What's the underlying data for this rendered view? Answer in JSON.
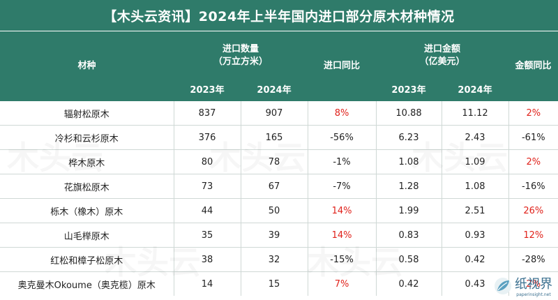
{
  "title": "【木头云资讯】2024年上半年国内进口部分原木材种情况",
  "headers": {
    "species": "材种",
    "volume": "进口数量",
    "volume_unit": "（万立方米）",
    "volume_yoy": "进口同比",
    "amount": "进口金额",
    "amount_unit": "（亿美元）",
    "amount_yoy": "金额同比",
    "y2023": "2023年",
    "y2024": "2024年"
  },
  "rows": [
    {
      "species": "辐射松原木",
      "vol2023": "837",
      "vol2024": "907",
      "vol_yoy": "8%",
      "amt2023": "10.88",
      "amt2024": "11.12",
      "amt_yoy": "2%"
    },
    {
      "species": "冷杉和云杉原木",
      "vol2023": "376",
      "vol2024": "165",
      "vol_yoy": "-56%",
      "amt2023": "6.23",
      "amt2024": "2.43",
      "amt_yoy": "-61%"
    },
    {
      "species": "桦木原木",
      "vol2023": "80",
      "vol2024": "78",
      "vol_yoy": "-1%",
      "amt2023": "1.08",
      "amt2024": "1.09",
      "amt_yoy": "2%"
    },
    {
      "species": "花旗松原木",
      "vol2023": "73",
      "vol2024": "67",
      "vol_yoy": "-7%",
      "amt2023": "1.28",
      "amt2024": "1.08",
      "amt_yoy": "-16%"
    },
    {
      "species": "栎木（橡木）原木",
      "vol2023": "44",
      "vol2024": "50",
      "vol_yoy": "14%",
      "amt2023": "1.99",
      "amt2024": "2.51",
      "amt_yoy": "26%"
    },
    {
      "species": "山毛榉原木",
      "vol2023": "35",
      "vol2024": "39",
      "vol_yoy": "14%",
      "amt2023": "0.83",
      "amt2024": "0.93",
      "amt_yoy": "12%"
    },
    {
      "species": "红松和樟子松原木",
      "vol2023": "38",
      "vol2024": "32",
      "vol_yoy": "-15%",
      "amt2023": "0.58",
      "amt2024": "0.42",
      "amt_yoy": "-28%"
    },
    {
      "species": "奥克曼木Okoume（奥克榄）原木",
      "vol2023": "14",
      "vol2024": "15",
      "vol_yoy": "7%",
      "amt2023": "0.42",
      "amt2024": "0.43",
      "amt_yoy": "2%"
    }
  ],
  "colors": {
    "header_bg": "#2f7b6a",
    "positive": "#e0211a",
    "negative": "#222222"
  },
  "watermark": "木头云",
  "logo": {
    "name": "纸视界",
    "url": "paperinsight.net"
  }
}
